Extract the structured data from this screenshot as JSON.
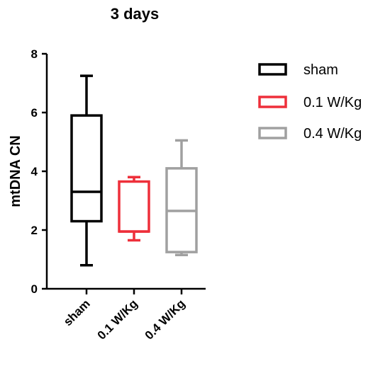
{
  "chart_data": {
    "type": "box",
    "title": "3 days",
    "xlabel": "",
    "ylabel": "mtDNA CN",
    "ylim": [
      0,
      8
    ],
    "yticks": [
      "0",
      "2",
      "4",
      "6",
      "8"
    ],
    "categories": [
      "sham",
      "0.1 W/Kg",
      "0.4 W/Kg"
    ],
    "series": [
      {
        "name": "sham",
        "color": "#000000",
        "min": 0.8,
        "q1": 2.3,
        "median": 3.3,
        "q3": 5.9,
        "max": 7.25
      },
      {
        "name": "0.1 W/Kg",
        "color": "#ee2f3a",
        "min": 1.65,
        "q1": 1.95,
        "median": 1.95,
        "q3": 3.65,
        "max": 3.8
      },
      {
        "name": "0.4 W/Kg",
        "color": "#a0a0a0",
        "min": 1.15,
        "q1": 1.25,
        "median": 2.65,
        "q3": 4.1,
        "max": 5.05
      }
    ],
    "legend": {
      "position": "right",
      "entries": [
        "sham",
        "0.1 W/Kg",
        "0.4 W/Kg"
      ]
    },
    "grid": false
  }
}
